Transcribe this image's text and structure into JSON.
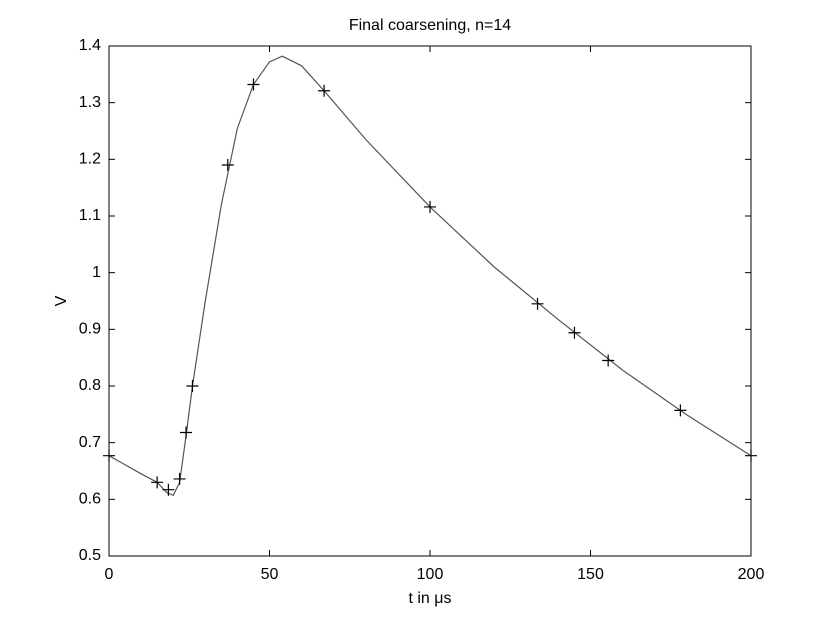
{
  "chart_data": {
    "type": "line",
    "title": "Final coarsening, n=14",
    "xlabel": "t in μs",
    "ylabel": "V",
    "xlim": [
      0,
      200
    ],
    "xticks": [
      0,
      50,
      100,
      150,
      200
    ],
    "ylim": [
      0.5,
      1.4
    ],
    "yticks": [
      0.5,
      0.6,
      0.7,
      0.8,
      0.9,
      1,
      1.1,
      1.2,
      1.3,
      1.4
    ],
    "grid": false,
    "series": [
      {
        "color": "#555555",
        "marker": "none",
        "x": [
          0,
          5,
          10,
          15,
          18,
          20,
          22,
          24,
          26,
          30,
          35,
          40,
          45,
          50,
          54,
          60,
          67,
          80,
          100,
          120,
          140,
          160,
          180,
          200
        ],
        "values": [
          0.677,
          0.661,
          0.645,
          0.63,
          0.612,
          0.607,
          0.63,
          0.712,
          0.8,
          0.95,
          1.12,
          1.255,
          1.332,
          1.372,
          1.382,
          1.365,
          1.321,
          1.235,
          1.116,
          1.01,
          0.917,
          0.828,
          0.749,
          0.677
        ]
      },
      {
        "color": "#000000",
        "marker": "+",
        "x": [
          0,
          15,
          18.5,
          22,
          24,
          26,
          37,
          45,
          67,
          100,
          133.5,
          145,
          155.5,
          178,
          200
        ],
        "values": [
          0.677,
          0.63,
          0.617,
          0.636,
          0.718,
          0.8,
          1.19,
          1.332,
          1.321,
          1.116,
          0.945,
          0.894,
          0.845,
          0.757,
          0.677
        ]
      }
    ]
  }
}
